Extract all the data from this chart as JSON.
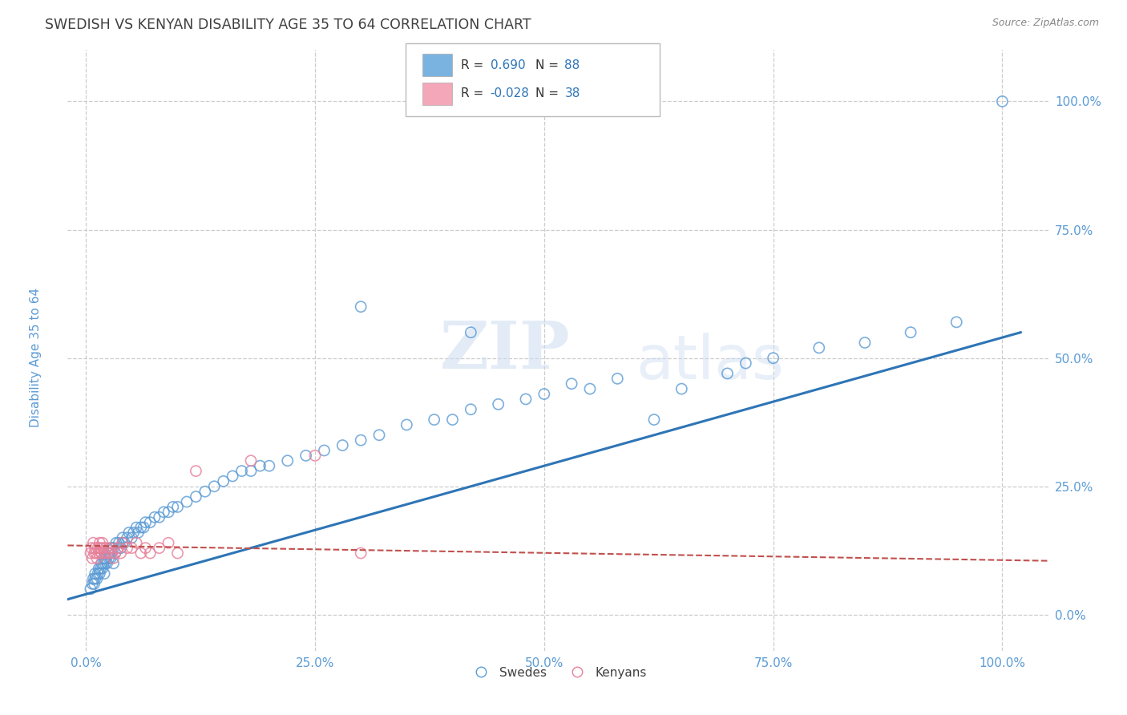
{
  "title": "SWEDISH VS KENYAN DISABILITY AGE 35 TO 64 CORRELATION CHART",
  "source_text": "Source: ZipAtlas.com",
  "ylabel": "Disability Age 35 to 64",
  "xlim": [
    -0.02,
    1.05
  ],
  "ylim": [
    -0.07,
    1.1
  ],
  "xticks": [
    0.0,
    0.25,
    0.5,
    0.75,
    1.0
  ],
  "xtick_labels": [
    "0.0%",
    "25.0%",
    "50.0%",
    "75.0%",
    "100.0%"
  ],
  "ytick_labels": [
    "0.0%",
    "25.0%",
    "50.0%",
    "75.0%",
    "100.0%"
  ],
  "yticks": [
    0.0,
    0.25,
    0.5,
    0.75,
    1.0
  ],
  "swede_color": "#7ab3e0",
  "kenyan_color": "#f4a7b9",
  "swede_edge_color": "#5b9bd5",
  "kenyan_edge_color": "#e87f9a",
  "swede_line_color": "#2e75b6",
  "kenyan_line_color": "#c0504d",
  "legend_R_swede": "0.690",
  "legend_N_swede": "88",
  "legend_R_kenyan": "-0.028",
  "legend_N_kenyan": "38",
  "watermark_zip": "ZIP",
  "watermark_atlas": "atlas",
  "background_color": "#ffffff",
  "grid_color": "#cccccc",
  "title_color": "#404040",
  "axis_label_color": "#5b9bd5",
  "tick_label_color": "#5b9bd5",
  "swede_scatter_x": [
    0.005,
    0.007,
    0.008,
    0.009,
    0.01,
    0.01,
    0.012,
    0.013,
    0.014,
    0.015,
    0.016,
    0.017,
    0.018,
    0.019,
    0.02,
    0.02,
    0.021,
    0.022,
    0.023,
    0.024,
    0.025,
    0.026,
    0.027,
    0.028,
    0.03,
    0.03,
    0.032,
    0.033,
    0.035,
    0.036,
    0.038,
    0.04,
    0.04,
    0.042,
    0.045,
    0.047,
    0.05,
    0.052,
    0.055,
    0.057,
    0.06,
    0.063,
    0.065,
    0.07,
    0.075,
    0.08,
    0.085,
    0.09,
    0.095,
    0.1,
    0.11,
    0.12,
    0.13,
    0.14,
    0.15,
    0.16,
    0.17,
    0.18,
    0.19,
    0.2,
    0.22,
    0.24,
    0.26,
    0.28,
    0.3,
    0.32,
    0.35,
    0.38,
    0.4,
    0.42,
    0.45,
    0.48,
    0.5,
    0.53,
    0.55,
    0.58,
    0.62,
    0.65,
    0.7,
    0.72,
    0.75,
    0.8,
    0.85,
    0.9,
    0.95,
    1.0,
    0.3,
    0.42
  ],
  "swede_scatter_y": [
    0.05,
    0.06,
    0.07,
    0.06,
    0.07,
    0.08,
    0.07,
    0.08,
    0.09,
    0.08,
    0.09,
    0.1,
    0.09,
    0.1,
    0.08,
    0.11,
    0.1,
    0.11,
    0.1,
    0.12,
    0.11,
    0.12,
    0.11,
    0.13,
    0.1,
    0.13,
    0.12,
    0.14,
    0.13,
    0.14,
    0.13,
    0.14,
    0.15,
    0.14,
    0.15,
    0.16,
    0.15,
    0.16,
    0.17,
    0.16,
    0.17,
    0.17,
    0.18,
    0.18,
    0.19,
    0.19,
    0.2,
    0.2,
    0.21,
    0.21,
    0.22,
    0.23,
    0.24,
    0.25,
    0.26,
    0.27,
    0.28,
    0.28,
    0.29,
    0.29,
    0.3,
    0.31,
    0.32,
    0.33,
    0.34,
    0.35,
    0.37,
    0.38,
    0.38,
    0.4,
    0.41,
    0.42,
    0.43,
    0.45,
    0.44,
    0.46,
    0.38,
    0.44,
    0.47,
    0.49,
    0.5,
    0.52,
    0.53,
    0.55,
    0.57,
    1.0,
    0.6,
    0.55
  ],
  "kenyan_scatter_x": [
    0.005,
    0.006,
    0.007,
    0.008,
    0.009,
    0.01,
    0.011,
    0.012,
    0.013,
    0.014,
    0.015,
    0.016,
    0.017,
    0.018,
    0.019,
    0.02,
    0.022,
    0.024,
    0.026,
    0.028,
    0.03,
    0.032,
    0.035,
    0.038,
    0.04,
    0.045,
    0.05,
    0.055,
    0.06,
    0.065,
    0.07,
    0.08,
    0.09,
    0.1,
    0.12,
    0.18,
    0.25,
    0.3
  ],
  "kenyan_scatter_y": [
    0.12,
    0.13,
    0.11,
    0.14,
    0.12,
    0.13,
    0.12,
    0.11,
    0.13,
    0.12,
    0.14,
    0.13,
    0.12,
    0.14,
    0.13,
    0.12,
    0.13,
    0.12,
    0.13,
    0.12,
    0.11,
    0.12,
    0.13,
    0.12,
    0.14,
    0.13,
    0.13,
    0.14,
    0.12,
    0.13,
    0.12,
    0.13,
    0.14,
    0.12,
    0.28,
    0.3,
    0.31,
    0.12
  ],
  "swede_line": {
    "x0": -0.02,
    "x1": 1.02,
    "y0": 0.03,
    "y1": 0.55
  },
  "kenyan_line": {
    "x0": -0.02,
    "x1": 1.05,
    "y0": 0.135,
    "y1": 0.105
  }
}
